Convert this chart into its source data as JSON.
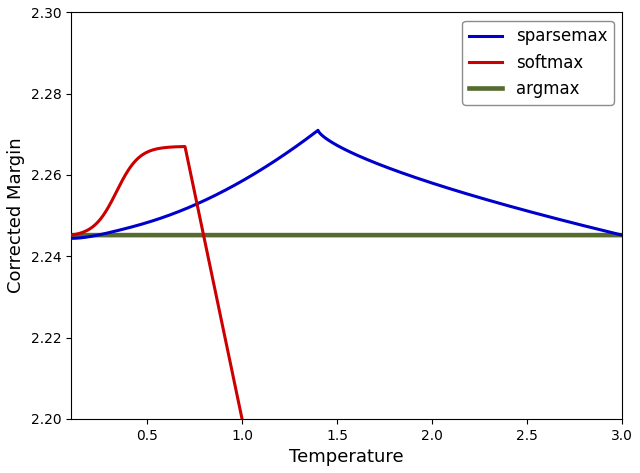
{
  "title": "",
  "xlabel": "Temperature",
  "ylabel": "Corrected Margin",
  "xlim": [
    0.1,
    3.0
  ],
  "ylim": [
    2.2,
    2.3
  ],
  "xticks": [
    0.5,
    1.0,
    1.5,
    2.0,
    2.5,
    3.0
  ],
  "yticks": [
    2.2,
    2.22,
    2.24,
    2.26,
    2.28,
    2.3
  ],
  "sparsemax_color": "#0000CD",
  "softmax_color": "#CC0000",
  "argmax_color": "#556B2F",
  "argmax_value": 2.2452,
  "linewidth": 2.2,
  "legend_loc": "upper right",
  "legend_fontsize": 12,
  "sparsemax_peak_t": 1.4,
  "sparsemax_peak_val": 2.271,
  "softmax_peak_t": 0.7,
  "softmax_peak_val": 2.267,
  "softmax_drop_t": 1.0,
  "softmax_bottom": 2.2
}
